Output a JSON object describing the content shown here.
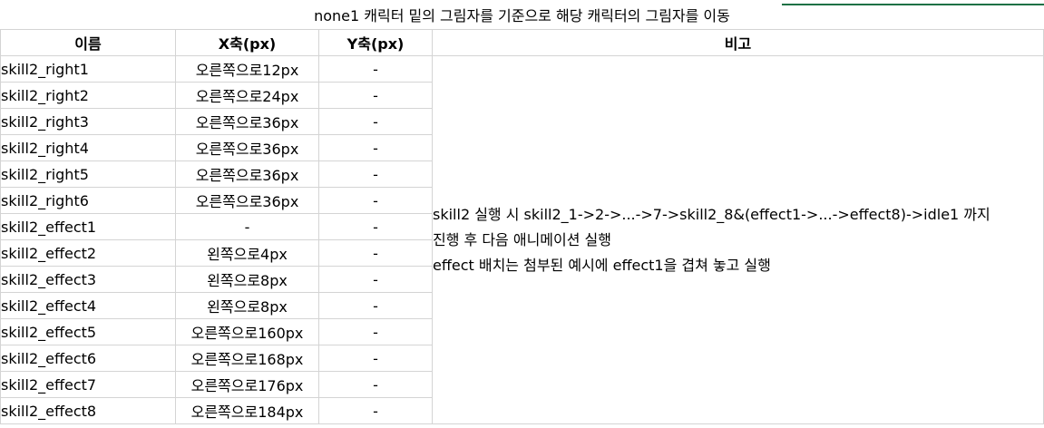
{
  "title": "none1 캐릭터 밑의 그림자를 기준으로  해당 캐릭터의 그림자를 이동",
  "columns": {
    "name": "이름",
    "x": "X축(px)",
    "y": "Y축(px)",
    "note": "비고"
  },
  "rows": [
    {
      "name": "skill2_right1",
      "x": "오른쪽으로12px",
      "y": "-"
    },
    {
      "name": "skill2_right2",
      "x": "오른쪽으로24px",
      "y": "-"
    },
    {
      "name": "skill2_right3",
      "x": "오른쪽으로36px",
      "y": "-"
    },
    {
      "name": "skill2_right4",
      "x": "오른쪽으로36px",
      "y": "-"
    },
    {
      "name": "skill2_right5",
      "x": "오른쪽으로36px",
      "y": "-"
    },
    {
      "name": "skill2_right6",
      "x": "오른쪽으로36px",
      "y": "-"
    },
    {
      "name": "skill2_effect1",
      "x": "-",
      "y": "-"
    },
    {
      "name": "skill2_effect2",
      "x": "왼쪽으로4px",
      "y": "-"
    },
    {
      "name": "skill2_effect3",
      "x": "왼쪽으로8px",
      "y": "-"
    },
    {
      "name": "skill2_effect4",
      "x": "왼쪽으로8px",
      "y": "-"
    },
    {
      "name": "skill2_effect5",
      "x": "오른쪽으로160px",
      "y": "-"
    },
    {
      "name": "skill2_effect6",
      "x": "오른쪽으로168px",
      "y": "-"
    },
    {
      "name": "skill2_effect7",
      "x": "오른쪽으로176px",
      "y": "-"
    },
    {
      "name": "skill2_effect8",
      "x": "오른쪽으로184px",
      "y": "-"
    }
  ],
  "note_lines": [
    "skill2 실행 시 skill2_1->2->...->7->skill2_8&(effect1->...->effect8)->idle1 까지",
    "진행 후 다음 애니메이션 실행",
    "effect 배치는 첨부된 예시에 effect1을 겹쳐 놓고 실행"
  ]
}
